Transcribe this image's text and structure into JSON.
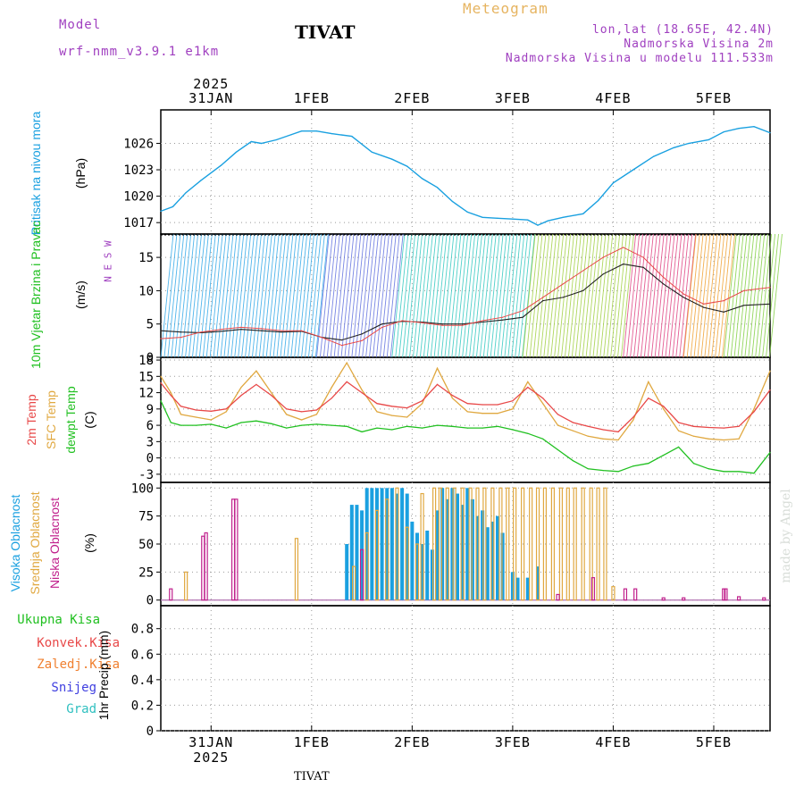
{
  "header": {
    "model_label": "Model",
    "model_name": "wrf-nmm_v3.9.1 e1km",
    "title": "TIVAT",
    "meteogram": "Meteogram",
    "coords": "lon,lat (18.65E, 42.4N)",
    "elevation": "Nadmorska Visina 2m",
    "model_elevation": "Nadmorska Visina u modelu 111.533m",
    "footer": "TIVAT",
    "watermark": "made by Angel"
  },
  "colors": {
    "pressure": "#19a0e0",
    "temp2m": "#e84848",
    "sfc": "#e0a840",
    "dew": "#20c020",
    "high_cloud": "#1aa0e0",
    "mid_cloud": "#e0a840",
    "low_cloud": "#c0208c",
    "grid": "#999999"
  },
  "time_axis": {
    "year": "2025",
    "x_start": 0,
    "x_end": 6.06,
    "day_labels": [
      "31JAN",
      "1FEB",
      "2FEB",
      "3FEB",
      "4FEB",
      "5FEB"
    ],
    "day_positions": [
      0.5,
      1.5,
      2.5,
      3.5,
      4.5,
      5.5
    ]
  },
  "chart_data": [
    {
      "type": "line",
      "panel": "pressure",
      "ylabel": "Pritisak na nivou mora",
      "unit": "(hPa)",
      "yticks": [
        1017,
        1020,
        1023,
        1026
      ],
      "ylim": [
        1015.7,
        1029.8
      ],
      "x": [
        0,
        0.12,
        0.25,
        0.4,
        0.6,
        0.75,
        0.9,
        1.0,
        1.15,
        1.3,
        1.4,
        1.55,
        1.7,
        1.9,
        2.1,
        2.3,
        2.45,
        2.6,
        2.75,
        2.9,
        3.05,
        3.2,
        3.35,
        3.5,
        3.65,
        3.75,
        3.85,
        4.0,
        4.2,
        4.35,
        4.5,
        4.7,
        4.9,
        5.1,
        5.25,
        5.45,
        5.6,
        5.75,
        5.9,
        6.06
      ],
      "values": [
        1018.3,
        1018.8,
        1020.4,
        1021.8,
        1023.5,
        1025.0,
        1026.2,
        1026.0,
        1026.4,
        1027.0,
        1027.4,
        1027.4,
        1027.1,
        1026.8,
        1025.0,
        1024.2,
        1023.4,
        1022.0,
        1021.0,
        1019.4,
        1018.2,
        1017.6,
        1017.5,
        1017.4,
        1017.3,
        1016.7,
        1017.2,
        1017.6,
        1018.0,
        1019.5,
        1021.5,
        1023.0,
        1024.5,
        1025.5,
        1026.0,
        1026.4,
        1027.3,
        1027.7,
        1027.9,
        1027.2
      ]
    },
    {
      "type": "line",
      "panel": "wind",
      "ylabel": "10m Vjetar Brzina i Pravac",
      "unit": "(m/s)",
      "compass": "N E S W",
      "yticks": [
        0,
        5,
        10,
        15
      ],
      "ylim": [
        0,
        18.5
      ],
      "x": [
        0,
        0.2,
        0.4,
        0.6,
        0.8,
        1.0,
        1.2,
        1.4,
        1.6,
        1.8,
        2.0,
        2.2,
        2.4,
        2.6,
        2.8,
        3.0,
        3.2,
        3.4,
        3.6,
        3.8,
        4.0,
        4.2,
        4.4,
        4.6,
        4.8,
        5.0,
        5.2,
        5.4,
        5.6,
        5.8,
        6.06
      ],
      "series": [
        {
          "values": [
            4.0,
            3.8,
            3.7,
            3.9,
            4.2,
            4.0,
            3.8,
            3.9,
            3.0,
            2.6,
            3.5,
            5.0,
            5.4,
            5.3,
            5.0,
            5.0,
            5.3,
            5.6,
            6.0,
            8.5,
            9.0,
            10.0,
            12.5,
            14.0,
            13.5,
            11.0,
            9.0,
            7.5,
            6.8,
            7.8,
            8.0
          ]
        },
        {
          "values": [
            2.8,
            3.0,
            3.8,
            4.2,
            4.5,
            4.3,
            4.0,
            4.0,
            3.0,
            1.8,
            2.5,
            4.5,
            5.5,
            5.2,
            4.8,
            4.8,
            5.5,
            6.0,
            7.0,
            9.0,
            11.0,
            13.0,
            15.0,
            16.5,
            15.0,
            12.0,
            9.5,
            8.0,
            8.5,
            10.0,
            10.5
          ]
        }
      ]
    },
    {
      "type": "line",
      "panel": "temperature",
      "ylabels": [
        "2m Temp",
        "SFC Temp",
        "dewpt Temp"
      ],
      "unit": "(C)",
      "yticks": [
        -3,
        0,
        3,
        6,
        9,
        12,
        15,
        18
      ],
      "ylim": [
        -4.5,
        18.5
      ],
      "x": [
        0,
        0.1,
        0.2,
        0.35,
        0.5,
        0.65,
        0.8,
        0.95,
        1.1,
        1.25,
        1.4,
        1.55,
        1.7,
        1.85,
        2.0,
        2.15,
        2.3,
        2.45,
        2.6,
        2.75,
        2.9,
        3.05,
        3.2,
        3.35,
        3.5,
        3.65,
        3.8,
        3.95,
        4.1,
        4.25,
        4.4,
        4.55,
        4.7,
        4.85,
        5.0,
        5.15,
        5.3,
        5.45,
        5.6,
        5.75,
        5.9,
        6.06
      ],
      "series": [
        {
          "values": [
            13.8,
            11.5,
            9.5,
            8.8,
            8.6,
            9.0,
            11.5,
            13.5,
            11.5,
            9.0,
            8.5,
            8.8,
            11.0,
            14.0,
            12.0,
            10.0,
            9.5,
            9.2,
            10.5,
            13.5,
            11.5,
            10.0,
            9.8,
            9.8,
            10.5,
            13.0,
            11.0,
            8.0,
            6.5,
            5.8,
            5.2,
            4.8,
            7.5,
            11.0,
            9.5,
            6.5,
            5.8,
            5.6,
            5.5,
            5.8,
            8.5,
            12.5
          ]
        },
        {
          "values": [
            15.0,
            12.0,
            8.0,
            7.5,
            7.0,
            8.5,
            13.0,
            16.0,
            12.0,
            8.0,
            7.0,
            8.0,
            13.0,
            17.5,
            12.5,
            8.5,
            7.8,
            7.5,
            10.0,
            16.5,
            11.0,
            8.5,
            8.2,
            8.2,
            9.0,
            14.0,
            10.0,
            6.0,
            5.0,
            4.0,
            3.5,
            3.3,
            7.0,
            14.0,
            9.0,
            5.0,
            4.0,
            3.5,
            3.3,
            3.5,
            9.0,
            16.0
          ]
        },
        {
          "values": [
            10.5,
            6.5,
            6.0,
            6.0,
            6.2,
            5.5,
            6.5,
            6.8,
            6.3,
            5.5,
            6.0,
            6.2,
            6.0,
            5.8,
            4.8,
            5.5,
            5.2,
            5.8,
            5.5,
            6.0,
            5.8,
            5.5,
            5.5,
            5.8,
            5.2,
            4.5,
            3.5,
            1.5,
            -0.5,
            -2.0,
            -2.3,
            -2.5,
            -1.5,
            -1.0,
            0.5,
            2.0,
            -1.0,
            -2.0,
            -2.5,
            -2.5,
            -2.8,
            1.0
          ]
        }
      ]
    },
    {
      "type": "bar",
      "panel": "clouds",
      "ylabels": [
        "Visoka Oblacnost",
        "Srednja Oblacnost",
        "Niska Oblacnost"
      ],
      "unit": "(%)",
      "yticks": [
        0,
        25,
        50,
        75,
        100
      ],
      "ylim": [
        -5,
        105
      ],
      "series": [
        {
          "name": "Visoka Oblacnost",
          "x": [
            1.85,
            1.9,
            1.95,
            2.0,
            2.05,
            2.1,
            2.15,
            2.2,
            2.25,
            2.3,
            2.35,
            2.4,
            2.45,
            2.5,
            2.55,
            2.6,
            2.65,
            2.7,
            2.75,
            2.8,
            2.85,
            2.9,
            2.95,
            3.0,
            3.05,
            3.1,
            3.15,
            3.2,
            3.25,
            3.3,
            3.35,
            3.4,
            3.5,
            3.55,
            3.65,
            3.75
          ],
          "values": [
            50,
            85,
            85,
            80,
            100,
            100,
            100,
            100,
            100,
            100,
            95,
            100,
            95,
            70,
            60,
            50,
            62,
            45,
            80,
            100,
            90,
            100,
            95,
            85,
            100,
            90,
            75,
            80,
            65,
            70,
            75,
            60,
            25,
            20,
            20,
            30
          ]
        },
        {
          "name": "Srednja Oblacnost",
          "x": [
            0.25,
            1.35,
            1.92,
            2.05,
            2.15,
            2.25,
            2.35,
            2.45,
            2.55,
            2.6,
            2.72,
            2.78,
            2.85,
            2.92,
            3.0,
            3.08,
            3.15,
            3.22,
            3.3,
            3.38,
            3.45,
            3.52,
            3.6,
            3.68,
            3.75,
            3.82,
            3.9,
            3.98,
            4.05,
            4.12,
            4.2,
            4.28,
            4.35,
            4.42,
            4.5
          ],
          "values": [
            25,
            55,
            30,
            60,
            80,
            90,
            100,
            65,
            50,
            95,
            100,
            100,
            100,
            100,
            100,
            100,
            100,
            100,
            100,
            100,
            100,
            100,
            100,
            100,
            100,
            100,
            100,
            100,
            100,
            100,
            100,
            100,
            100,
            100,
            12
          ]
        },
        {
          "name": "Niska Oblacnost",
          "x": [
            0.1,
            0.42,
            0.45,
            0.72,
            0.75,
            2.0,
            3.95,
            4.3,
            4.62,
            4.72,
            5.0,
            5.2,
            5.6,
            5.62,
            5.75,
            6.0
          ],
          "values": [
            10,
            57,
            60,
            90,
            90,
            45,
            5,
            20,
            10,
            10,
            2,
            2,
            10,
            10,
            3,
            2
          ]
        }
      ]
    },
    {
      "type": "line",
      "panel": "precip",
      "ylabel": "1hr Precip",
      "unit": "(mm)",
      "yticks": [
        0,
        0.2,
        0.4,
        0.6,
        0.8
      ],
      "ylim": [
        0,
        0.98
      ],
      "series": [
        {
          "name": "Ukupna Kisa",
          "color": "#20c020",
          "values": []
        },
        {
          "name": "Konvek.Kisa",
          "color": "#e84848",
          "values": []
        },
        {
          "name": "Zaledj.Kisa",
          "color": "#f08030",
          "values": []
        },
        {
          "name": "Snijeg",
          "color": "#4040e0",
          "values": []
        },
        {
          "name": "Grad",
          "color": "#30c0c0",
          "values": []
        }
      ]
    }
  ]
}
